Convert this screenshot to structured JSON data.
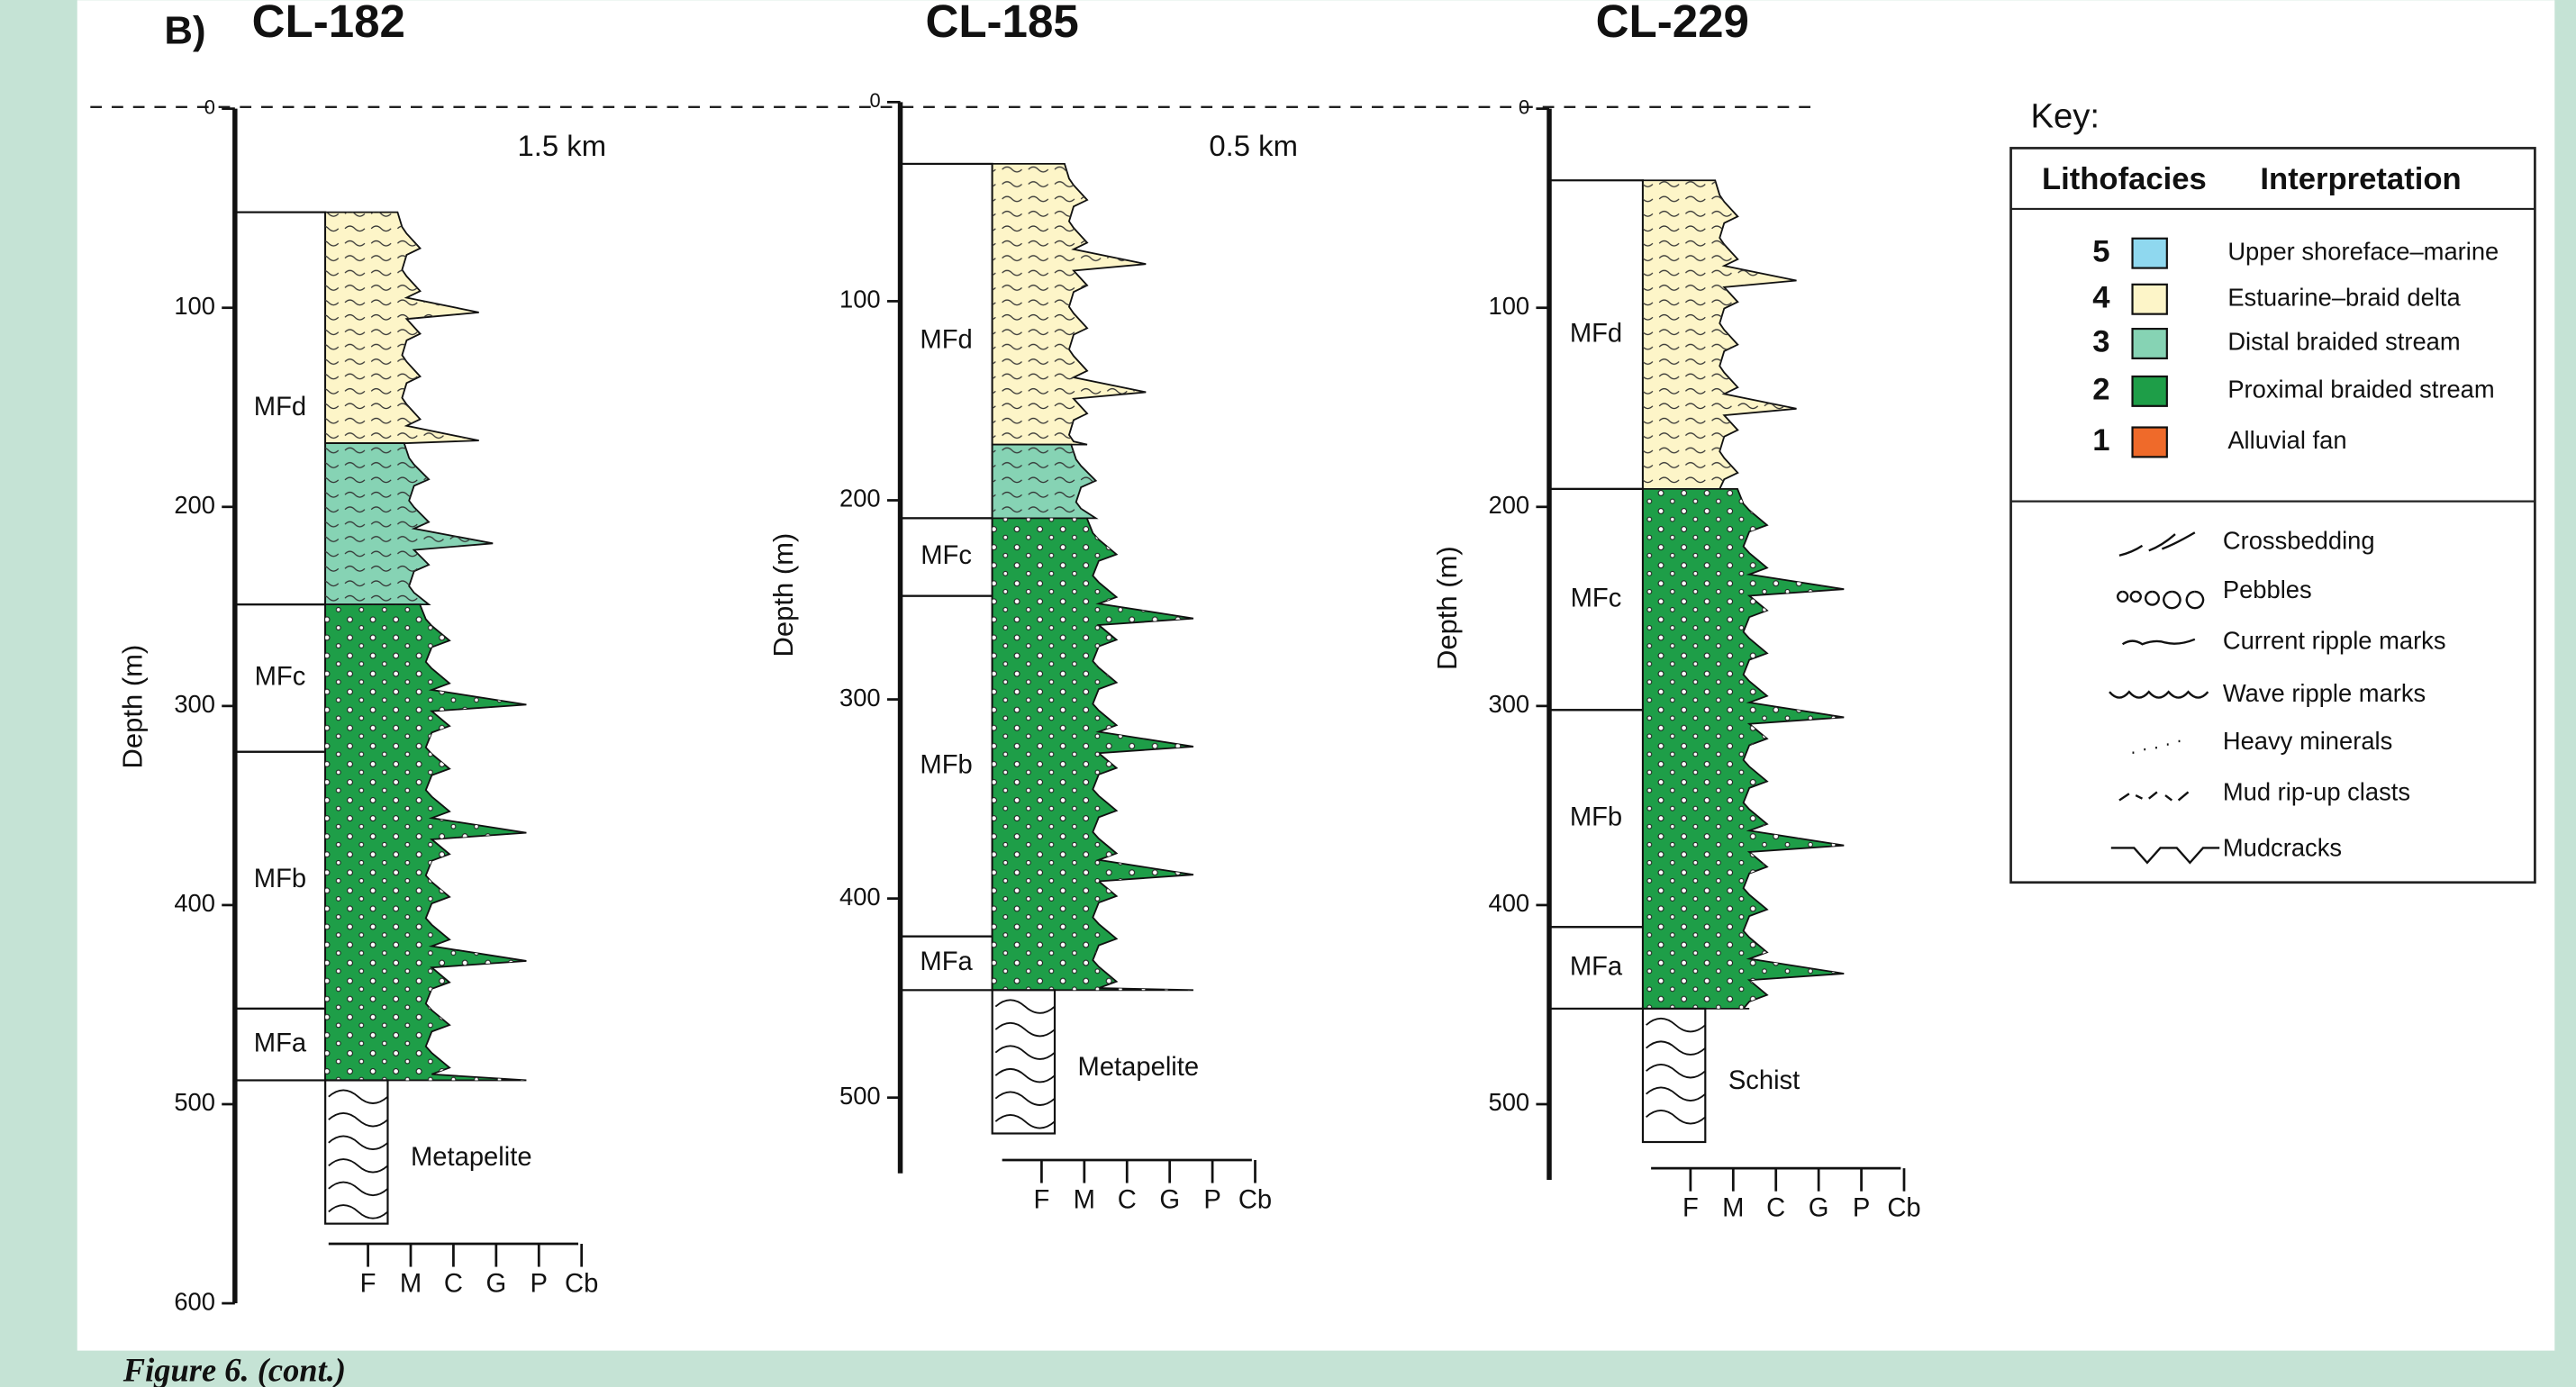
{
  "label": "B)",
  "columns": [
    {
      "title": "CL-182",
      "distance": "1.5 km",
      "axis_label": "Depth (m)",
      "ylim": [
        0,
        600
      ],
      "yticks": [
        0,
        100,
        200,
        300,
        400,
        500,
        600
      ],
      "units": [
        {
          "label": "MFd",
          "top": 52,
          "base": 249
        },
        {
          "label": "MFc",
          "top": 249,
          "base": 323
        },
        {
          "label": "MFb",
          "top": 323,
          "base": 452
        },
        {
          "label": "MFa",
          "top": 452,
          "base": 488
        }
      ],
      "lithology": [
        {
          "facies": 4,
          "top": 52,
          "base": 168
        },
        {
          "facies": 3,
          "top": 168,
          "base": 249
        },
        {
          "facies": 2,
          "top": 249,
          "base": 488
        }
      ],
      "basement": {
        "label": "Metapelite",
        "top": 488,
        "base": 560
      }
    },
    {
      "title": "CL-185",
      "distance": "0.5 km",
      "axis_label": "Depth (m)",
      "ylim": [
        0,
        538
      ],
      "yticks": [
        0,
        100,
        200,
        300,
        400,
        500
      ],
      "units": [
        {
          "label": "MFd",
          "top": 31,
          "base": 209
        },
        {
          "label": "MFc",
          "top": 209,
          "base": 248
        },
        {
          "label": "MFb",
          "top": 248,
          "base": 419
        },
        {
          "label": "MFa",
          "top": 419,
          "base": 446
        }
      ],
      "lithology": [
        {
          "facies": 4,
          "top": 31,
          "base": 172
        },
        {
          "facies": 3,
          "top": 172,
          "base": 209
        },
        {
          "facies": 2,
          "top": 209,
          "base": 446
        }
      ],
      "basement": {
        "label": "Metapelite",
        "top": 446,
        "base": 518
      }
    },
    {
      "title": "CL-229",
      "axis_label": "Depth (m)",
      "ylim": [
        0,
        538
      ],
      "yticks": [
        0,
        100,
        200,
        300,
        400,
        500
      ],
      "units": [
        {
          "label": "MFd",
          "top": 36,
          "base": 191
        },
        {
          "label": "MFc",
          "top": 191,
          "base": 302
        },
        {
          "label": "MFb",
          "top": 302,
          "base": 411
        },
        {
          "label": "MFa",
          "top": 411,
          "base": 452
        }
      ],
      "lithology": [
        {
          "facies": 4,
          "top": 36,
          "base": 191
        },
        {
          "facies": 2,
          "top": 191,
          "base": 452
        }
      ],
      "basement": {
        "label": "Schist",
        "top": 452,
        "base": 519
      }
    }
  ],
  "grain_size": [
    "F",
    "M",
    "C",
    "G",
    "P",
    "Cb"
  ],
  "key": {
    "title": "Key:",
    "headers": [
      "Lithofacies",
      "Interpretation"
    ],
    "facies": [
      {
        "number": 5,
        "color": "#8fd8ef",
        "label": "Upper shoreface–marine"
      },
      {
        "number": 4,
        "color": "#fdf5c8",
        "label": "Estuarine–braid delta"
      },
      {
        "number": 3,
        "color": "#86d3b4",
        "label": "Distal braided stream"
      },
      {
        "number": 2,
        "color": "#1e9e48",
        "label": "Proximal braided stream"
      },
      {
        "number": 1,
        "color": "#ef6a2a",
        "label": "Alluvial fan"
      }
    ],
    "symbols": [
      "Crossbedding",
      "Pebbles",
      "Current ripple marks",
      "Wave ripple marks",
      "Heavy minerals",
      "Mud rip-up clasts",
      "Mudcracks"
    ]
  },
  "caption": "Figure 6. (cont.)"
}
